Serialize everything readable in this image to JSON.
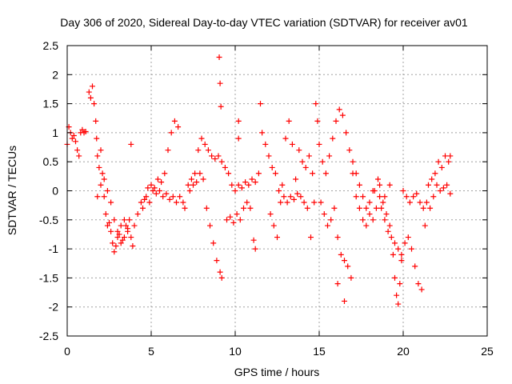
{
  "chart_data": {
    "type": "scatter",
    "title": "Day 306 of 2020, Sidereal Day-to-day VTEC variation (SDTVAR) for receiver av01",
    "xlabel": "GPS time / hours",
    "ylabel": "SDTVAR / TECUs",
    "xlim": [
      0,
      25
    ],
    "ylim": [
      -2.5,
      2.5
    ],
    "xticks": [
      "0",
      "5",
      "10",
      "15",
      "20",
      "25"
    ],
    "yticks": [
      "-2.5",
      "-2",
      "-1.5",
      "-1",
      "-0.5",
      "0",
      "0.5",
      "1",
      "1.5",
      "2",
      "2.5"
    ],
    "xtick_values": [
      0,
      5,
      10,
      15,
      20,
      25
    ],
    "ytick_values": [
      -2.5,
      -2,
      -1.5,
      -1,
      -0.5,
      0,
      0.5,
      1,
      1.5,
      2,
      2.5
    ],
    "grid": true,
    "marker": "+",
    "series": [
      {
        "name": "SDTVAR",
        "color": "#ff0000",
        "points": [
          [
            0.0,
            0.8
          ],
          [
            0.1,
            1.1
          ],
          [
            0.2,
            1.0
          ],
          [
            0.3,
            0.9
          ],
          [
            0.4,
            0.95
          ],
          [
            0.5,
            0.85
          ],
          [
            0.6,
            0.7
          ],
          [
            0.7,
            0.6
          ],
          [
            0.8,
            1.0
          ],
          [
            0.9,
            1.05
          ],
          [
            1.0,
            1.0
          ],
          [
            1.1,
            1.02
          ],
          [
            1.3,
            1.7
          ],
          [
            1.4,
            1.6
          ],
          [
            1.5,
            1.8
          ],
          [
            1.6,
            1.5
          ],
          [
            1.7,
            1.2
          ],
          [
            1.75,
            0.9
          ],
          [
            1.8,
            0.6
          ],
          [
            1.9,
            0.4
          ],
          [
            2.0,
            0.7
          ],
          [
            2.1,
            0.3
          ],
          [
            2.2,
            -0.1
          ],
          [
            2.3,
            -0.4
          ],
          [
            2.4,
            -0.6
          ],
          [
            2.5,
            -0.55
          ],
          [
            2.6,
            -0.7
          ],
          [
            2.7,
            -0.9
          ],
          [
            2.8,
            -1.05
          ],
          [
            2.9,
            -0.95
          ],
          [
            3.0,
            -0.8
          ],
          [
            3.1,
            -0.75
          ],
          [
            3.2,
            -0.9
          ],
          [
            3.3,
            -0.85
          ],
          [
            3.4,
            -0.8
          ],
          [
            3.5,
            -0.6
          ],
          [
            3.6,
            -0.7
          ],
          [
            3.7,
            -0.5
          ],
          [
            3.8,
            -0.8
          ],
          [
            3.9,
            -0.95
          ],
          [
            4.0,
            -0.6
          ],
          [
            4.2,
            -0.4
          ],
          [
            4.4,
            -0.2
          ],
          [
            4.6,
            -0.15
          ],
          [
            4.8,
            0.05
          ],
          [
            5.0,
            0.1
          ],
          [
            5.2,
            0.05
          ],
          [
            5.4,
            0.2
          ],
          [
            5.6,
            0.15
          ],
          [
            5.8,
            0.3
          ],
          [
            6.0,
            0.7
          ],
          [
            6.2,
            1.0
          ],
          [
            6.4,
            1.2
          ],
          [
            6.6,
            1.1
          ],
          [
            1.8,
            -0.1
          ],
          [
            2.0,
            0.1
          ],
          [
            2.2,
            0.2
          ],
          [
            2.4,
            0.0
          ],
          [
            2.6,
            -0.2
          ],
          [
            2.8,
            -0.5
          ],
          [
            3.0,
            -0.7
          ],
          [
            3.2,
            -0.6
          ],
          [
            3.4,
            -0.5
          ],
          [
            3.6,
            -0.65
          ],
          [
            3.8,
            0.8
          ],
          [
            4.5,
            -0.3
          ],
          [
            4.7,
            -0.1
          ],
          [
            4.9,
            -0.2
          ],
          [
            5.1,
            0.0
          ],
          [
            5.3,
            -0.05
          ],
          [
            5.5,
            0.0
          ],
          [
            5.7,
            -0.1
          ],
          [
            5.9,
            -0.05
          ],
          [
            6.1,
            -0.15
          ],
          [
            6.3,
            -0.1
          ],
          [
            6.5,
            -0.2
          ],
          [
            6.7,
            -0.1
          ],
          [
            6.9,
            -0.2
          ],
          [
            7.0,
            -0.3
          ],
          [
            7.2,
            0.1
          ],
          [
            7.4,
            0.2
          ],
          [
            7.6,
            0.3
          ],
          [
            7.8,
            0.7
          ],
          [
            8.0,
            0.9
          ],
          [
            8.2,
            0.8
          ],
          [
            8.4,
            0.7
          ],
          [
            8.6,
            0.6
          ],
          [
            8.8,
            0.55
          ],
          [
            9.0,
            0.6
          ],
          [
            9.2,
            0.5
          ],
          [
            9.4,
            0.4
          ],
          [
            9.6,
            0.3
          ],
          [
            7.3,
            0.0
          ],
          [
            7.5,
            0.1
          ],
          [
            7.7,
            0.15
          ],
          [
            7.9,
            0.3
          ],
          [
            8.1,
            0.2
          ],
          [
            8.3,
            -0.3
          ],
          [
            8.5,
            -0.6
          ],
          [
            8.7,
            -0.9
          ],
          [
            8.9,
            -1.2
          ],
          [
            9.1,
            -1.4
          ],
          [
            9.2,
            -1.5
          ],
          [
            9.1,
            1.85
          ],
          [
            9.05,
            2.3
          ],
          [
            9.15,
            1.45
          ],
          [
            9.5,
            -0.5
          ],
          [
            9.7,
            -0.45
          ],
          [
            9.9,
            -0.55
          ],
          [
            10.1,
            -0.4
          ],
          [
            10.3,
            -0.5
          ],
          [
            10.5,
            -0.3
          ],
          [
            10.7,
            -0.2
          ],
          [
            10.9,
            -0.3
          ],
          [
            11.1,
            -0.85
          ],
          [
            11.2,
            -1.0
          ],
          [
            10.2,
            1.2
          ],
          [
            10.2,
            0.9
          ],
          [
            9.8,
            0.1
          ],
          [
            10.0,
            0.0
          ],
          [
            10.2,
            0.1
          ],
          [
            10.4,
            0.05
          ],
          [
            10.6,
            0.15
          ],
          [
            10.8,
            0.1
          ],
          [
            11.0,
            0.2
          ],
          [
            11.2,
            0.15
          ],
          [
            11.4,
            0.3
          ],
          [
            11.6,
            1.0
          ],
          [
            11.8,
            0.8
          ],
          [
            12.0,
            0.6
          ],
          [
            12.2,
            0.4
          ],
          [
            12.4,
            0.3
          ],
          [
            12.6,
            0.0
          ],
          [
            12.8,
            0.1
          ],
          [
            13.0,
            0.9
          ],
          [
            13.2,
            1.2
          ],
          [
            13.4,
            0.8
          ],
          [
            13.6,
            0.2
          ],
          [
            13.8,
            0.7
          ],
          [
            14.0,
            0.5
          ],
          [
            14.2,
            0.4
          ],
          [
            14.4,
            0.6
          ],
          [
            14.6,
            0.3
          ],
          [
            11.5,
            1.5
          ],
          [
            12.1,
            -0.4
          ],
          [
            12.3,
            -0.6
          ],
          [
            12.5,
            -0.8
          ],
          [
            12.7,
            -0.2
          ],
          [
            12.9,
            -0.1
          ],
          [
            13.1,
            -0.2
          ],
          [
            13.3,
            -0.1
          ],
          [
            13.5,
            -0.15
          ],
          [
            13.7,
            -0.05
          ],
          [
            13.9,
            -0.1
          ],
          [
            14.1,
            -0.2
          ],
          [
            14.3,
            -0.3
          ],
          [
            14.5,
            -0.8
          ],
          [
            14.7,
            -0.2
          ],
          [
            14.8,
            1.5
          ],
          [
            14.9,
            1.2
          ],
          [
            15.0,
            0.8
          ],
          [
            15.2,
            0.5
          ],
          [
            15.4,
            0.3
          ],
          [
            15.6,
            0.6
          ],
          [
            15.8,
            0.9
          ],
          [
            16.0,
            1.2
          ],
          [
            16.2,
            1.4
          ],
          [
            16.4,
            1.3
          ],
          [
            16.6,
            1.0
          ],
          [
            16.8,
            0.7
          ],
          [
            17.0,
            0.5
          ],
          [
            17.2,
            0.3
          ],
          [
            17.4,
            0.1
          ],
          [
            17.6,
            -0.1
          ],
          [
            17.8,
            -0.3
          ],
          [
            18.0,
            -0.2
          ],
          [
            18.2,
            0.0
          ],
          [
            15.1,
            -0.2
          ],
          [
            15.3,
            -0.4
          ],
          [
            15.5,
            -0.6
          ],
          [
            15.7,
            -0.5
          ],
          [
            15.9,
            -0.3
          ],
          [
            16.1,
            -0.8
          ],
          [
            16.3,
            -1.1
          ],
          [
            16.5,
            -1.2
          ],
          [
            16.7,
            -1.3
          ],
          [
            16.9,
            -1.5
          ],
          [
            16.5,
            -1.9
          ],
          [
            16.1,
            -1.6
          ],
          [
            17.0,
            0.3
          ],
          [
            17.2,
            -0.1
          ],
          [
            17.4,
            -0.3
          ],
          [
            17.6,
            -0.5
          ],
          [
            17.8,
            -0.6
          ],
          [
            18.0,
            -0.4
          ],
          [
            18.2,
            -0.5
          ],
          [
            18.4,
            -0.3
          ],
          [
            18.6,
            -0.1
          ],
          [
            18.8,
            -0.2
          ],
          [
            19.0,
            -0.4
          ],
          [
            19.2,
            -0.6
          ],
          [
            19.4,
            -1.1
          ],
          [
            19.5,
            -1.5
          ],
          [
            19.6,
            -1.8
          ],
          [
            19.7,
            -1.95
          ],
          [
            19.8,
            -1.6
          ],
          [
            19.9,
            -1.2
          ],
          [
            18.5,
            0.2
          ],
          [
            18.7,
            -0.3
          ],
          [
            18.9,
            -0.5
          ],
          [
            19.1,
            -0.7
          ],
          [
            19.3,
            -0.8
          ],
          [
            19.5,
            -0.9
          ],
          [
            19.7,
            -1.0
          ],
          [
            19.9,
            -1.1
          ],
          [
            20.1,
            -0.9
          ],
          [
            20.3,
            -0.8
          ],
          [
            20.5,
            -1.0
          ],
          [
            20.7,
            -1.3
          ],
          [
            20.9,
            -1.6
          ],
          [
            21.1,
            -1.7
          ],
          [
            21.3,
            -0.6
          ],
          [
            20.0,
            0.0
          ],
          [
            20.2,
            -0.1
          ],
          [
            20.4,
            -0.2
          ],
          [
            20.6,
            -0.1
          ],
          [
            20.8,
            -0.05
          ],
          [
            21.0,
            -0.2
          ],
          [
            21.2,
            -0.3
          ],
          [
            21.4,
            -0.2
          ],
          [
            21.6,
            -0.3
          ],
          [
            21.8,
            -0.1
          ],
          [
            22.0,
            0.1
          ],
          [
            22.2,
            0.0
          ],
          [
            22.4,
            0.05
          ],
          [
            22.6,
            0.1
          ],
          [
            22.8,
            -0.05
          ],
          [
            21.5,
            0.1
          ],
          [
            21.7,
            0.2
          ],
          [
            21.9,
            0.3
          ],
          [
            22.1,
            0.5
          ],
          [
            22.3,
            0.4
          ],
          [
            22.5,
            0.6
          ],
          [
            22.7,
            0.5
          ],
          [
            22.8,
            0.6
          ],
          [
            18.3,
            0.0
          ],
          [
            18.6,
            0.1
          ],
          [
            18.9,
            -0.1
          ],
          [
            19.2,
            0.1
          ]
        ]
      }
    ]
  }
}
